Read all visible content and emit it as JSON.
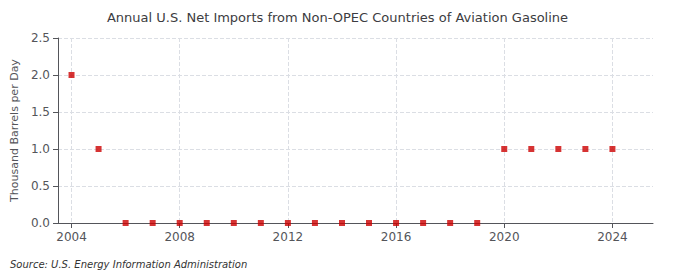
{
  "chart_data": {
    "type": "scatter",
    "title": "Annual U.S. Net Imports from Non-OPEC Countries of Aviation Gasoline",
    "ylabel": "Thousand Barrels per Day",
    "annotation": "Source: U.S. Energy Information Administration",
    "x": [
      2004,
      2005,
      2006,
      2007,
      2008,
      2009,
      2010,
      2011,
      2012,
      2013,
      2014,
      2015,
      2016,
      2017,
      2018,
      2019,
      2020,
      2021,
      2022,
      2023,
      2024
    ],
    "values": [
      2.0,
      1.0,
      0.0,
      0.0,
      0.0,
      0.0,
      0.0,
      0.0,
      0.0,
      0.0,
      0.0,
      0.0,
      0.0,
      0.0,
      0.0,
      0.0,
      1.0,
      1.0,
      1.0,
      1.0,
      1.0
    ],
    "color": "#cc0000",
    "marker": "square",
    "xlim": [
      2003.5,
      2025.5
    ],
    "xticks": [
      2004,
      2008,
      2012,
      2016,
      2020,
      2024
    ],
    "ylim": [
      0.0,
      2.5
    ],
    "yticks": [
      {
        "value": 0.0,
        "label": "0.0"
      },
      0.5,
      {
        "value": 1.0,
        "label": "1.0"
      },
      1.5,
      {
        "value": 2.0,
        "label": "2.0"
      },
      2.5
    ],
    "grid": true
  }
}
